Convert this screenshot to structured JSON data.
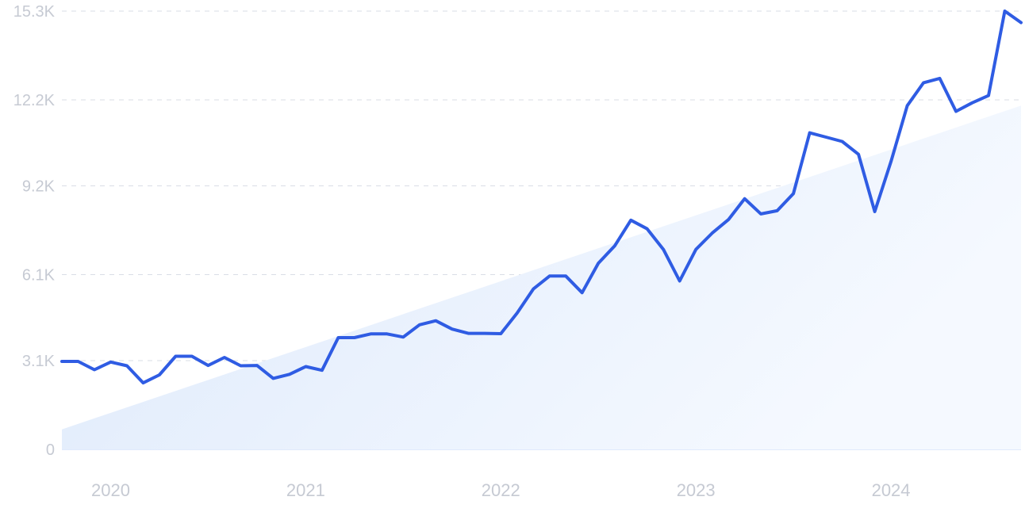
{
  "chart_data": {
    "type": "line",
    "title": "",
    "xlabel": "",
    "ylabel": "",
    "ylim": [
      0,
      15300
    ],
    "y_ticks": [
      {
        "value": 0,
        "label": "0"
      },
      {
        "value": 3100,
        "label": "3.1K"
      },
      {
        "value": 6100,
        "label": "6.1K"
      },
      {
        "value": 9200,
        "label": "9.2K"
      },
      {
        "value": 12200,
        "label": "12.2K"
      },
      {
        "value": 15300,
        "label": "15.3K"
      }
    ],
    "x_ticks": [
      {
        "value": "2020-01",
        "label": "2020"
      },
      {
        "value": "2021-01",
        "label": "2021"
      },
      {
        "value": "2022-01",
        "label": "2022"
      },
      {
        "value": "2023-01",
        "label": "2023"
      },
      {
        "value": "2024-01",
        "label": "2024"
      }
    ],
    "grid": true,
    "colors": {
      "line": "#2f5ce3",
      "trend_fill": "#e4eefc",
      "tick_text": "#c6cad3",
      "grid": "#d9dde6"
    },
    "trend": {
      "x": [
        "2019-10",
        "2024-09"
      ],
      "y": [
        700,
        12000
      ]
    },
    "series": [
      {
        "x": [
          "2019-10",
          "2019-11",
          "2019-12",
          "2020-01",
          "2020-02",
          "2020-03",
          "2020-04",
          "2020-05",
          "2020-06",
          "2020-07",
          "2020-08",
          "2020-09",
          "2020-10",
          "2020-11",
          "2020-12",
          "2021-01",
          "2021-02",
          "2021-03",
          "2021-04",
          "2021-05",
          "2021-06",
          "2021-07",
          "2021-08",
          "2021-09",
          "2021-10",
          "2021-11",
          "2021-12",
          "2022-01",
          "2022-02",
          "2022-03",
          "2022-04",
          "2022-05",
          "2022-06",
          "2022-07",
          "2022-08",
          "2022-09",
          "2022-10",
          "2022-11",
          "2022-12",
          "2023-01",
          "2023-02",
          "2023-03",
          "2023-04",
          "2023-05",
          "2023-06",
          "2023-07",
          "2023-08",
          "2023-09",
          "2023-10",
          "2023-11",
          "2023-12",
          "2024-01",
          "2024-02",
          "2024-03",
          "2024-04",
          "2024-05",
          "2024-06",
          "2024-07",
          "2024-08",
          "2024-09"
        ],
        "values": [
          3070,
          3070,
          2780,
          3050,
          2920,
          2320,
          2600,
          3250,
          3250,
          2930,
          3210,
          2920,
          2930,
          2480,
          2620,
          2890,
          2760,
          3900,
          3900,
          4030,
          4030,
          3920,
          4350,
          4490,
          4200,
          4050,
          4050,
          4040,
          4760,
          5600,
          6050,
          6050,
          5470,
          6500,
          7100,
          8000,
          7700,
          6980,
          5880,
          6980,
          7550,
          8020,
          8750,
          8220,
          8330,
          8930,
          11050,
          10900,
          10750,
          10300,
          8300,
          10050,
          12000,
          12800,
          12950,
          11800,
          12100,
          12350,
          15300,
          14900
        ]
      }
    ]
  }
}
